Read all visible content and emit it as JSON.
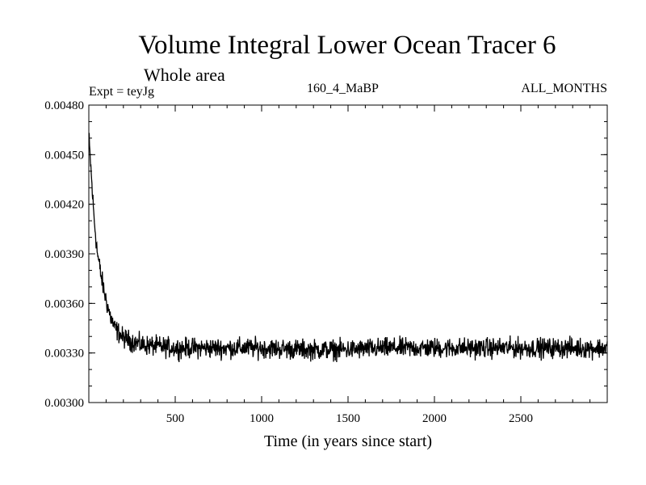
{
  "header": {
    "title": "Volume Integral Lower Ocean Tracer 6",
    "subtitle": "Whole area",
    "experiment_label": "Expt = teyJg",
    "experiment_id": "160_4_MaBP",
    "months": "ALL_MONTHS"
  },
  "chart_data": {
    "type": "line",
    "title": "Volume Integral Lower Ocean Tracer 6",
    "xlabel": "Time (in years since start)",
    "ylabel": "",
    "xlim": [
      0,
      3000
    ],
    "ylim": [
      0.003,
      0.0048
    ],
    "x_ticks": [
      500,
      1000,
      1500,
      2000,
      2500
    ],
    "x_tick_labels": [
      "500",
      "1000",
      "1500",
      "2000",
      "2500"
    ],
    "y_ticks": [
      0.003,
      0.0033,
      0.0036,
      0.0039,
      0.0042,
      0.0045,
      0.0048
    ],
    "y_tick_labels": [
      "0.00300",
      "0.00330",
      "0.00360",
      "0.00390",
      "0.00420",
      "0.00450",
      "0.00480"
    ],
    "series": [
      {
        "name": "Tracer 6",
        "color": "#000000",
        "x": [
          0,
          5,
          10,
          20,
          30,
          50,
          75,
          100,
          125,
          150,
          200,
          300,
          400,
          500,
          750,
          1000,
          1250,
          1500,
          1750,
          2000,
          2250,
          2500,
          2750,
          3000
        ],
        "values": [
          0.00462,
          0.00452,
          0.00445,
          0.00428,
          0.00412,
          0.0039,
          0.00374,
          0.00362,
          0.00352,
          0.00345,
          0.00339,
          0.00335,
          0.00334,
          0.00333,
          0.00333,
          0.00333,
          0.00332,
          0.00332,
          0.00333,
          0.00333,
          0.00333,
          0.00333,
          0.00333,
          0.00333
        ],
        "noise_amplitude": 6e-05
      }
    ]
  }
}
